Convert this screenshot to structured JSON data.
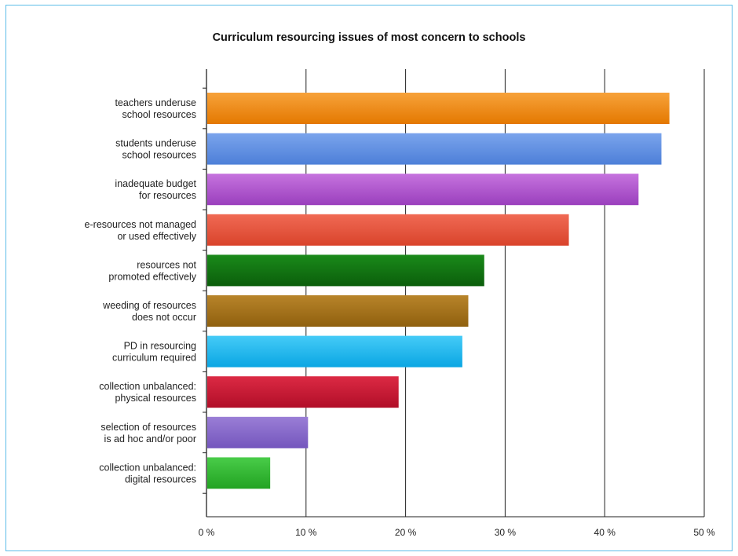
{
  "chart_data": {
    "type": "bar",
    "orientation": "horizontal",
    "title": "Curriculum resourcing issues of most concern to schools",
    "xlabel": "",
    "ylabel": "",
    "xlim": [
      0,
      50
    ],
    "x_unit": "%",
    "grid": true,
    "legend": "none",
    "tick_labels": [
      "0 %",
      "10 %",
      "20 %",
      "30 %",
      "40 %",
      "50 %"
    ],
    "categories": [
      [
        "teachers underuse",
        "school resources"
      ],
      [
        "students underuse",
        "school resources"
      ],
      [
        "inadequate budget",
        "for resources"
      ],
      [
        "e-resources not managed",
        "or used effectively"
      ],
      [
        "resources not",
        "promoted effectively"
      ],
      [
        "weeding of resources",
        "does not occur"
      ],
      [
        "PD in resourcing",
        "curriculum required"
      ],
      [
        "collection unbalanced:",
        "physical resources"
      ],
      [
        "selection of resources",
        "is ad hoc and/or poor"
      ],
      [
        "collection unbalanced:",
        "digital resources"
      ]
    ],
    "values": [
      46.5,
      45.7,
      43.4,
      36.4,
      27.9,
      26.3,
      25.7,
      19.3,
      10.2,
      6.4
    ],
    "colors": [
      [
        "#f7a23a",
        "#e47800"
      ],
      [
        "#7aa4ec",
        "#4d7fd8"
      ],
      [
        "#c673de",
        "#9a3fbd"
      ],
      [
        "#f06a54",
        "#d9432b"
      ],
      [
        "#1a8a1a",
        "#0b5e0b"
      ],
      [
        "#b8842a",
        "#8f600e"
      ],
      [
        "#45cbf7",
        "#0aa6e3"
      ],
      [
        "#dc2a44",
        "#b10e28"
      ],
      [
        "#9a7ed6",
        "#7456bd"
      ],
      [
        "#49cc49",
        "#22a322"
      ]
    ]
  }
}
